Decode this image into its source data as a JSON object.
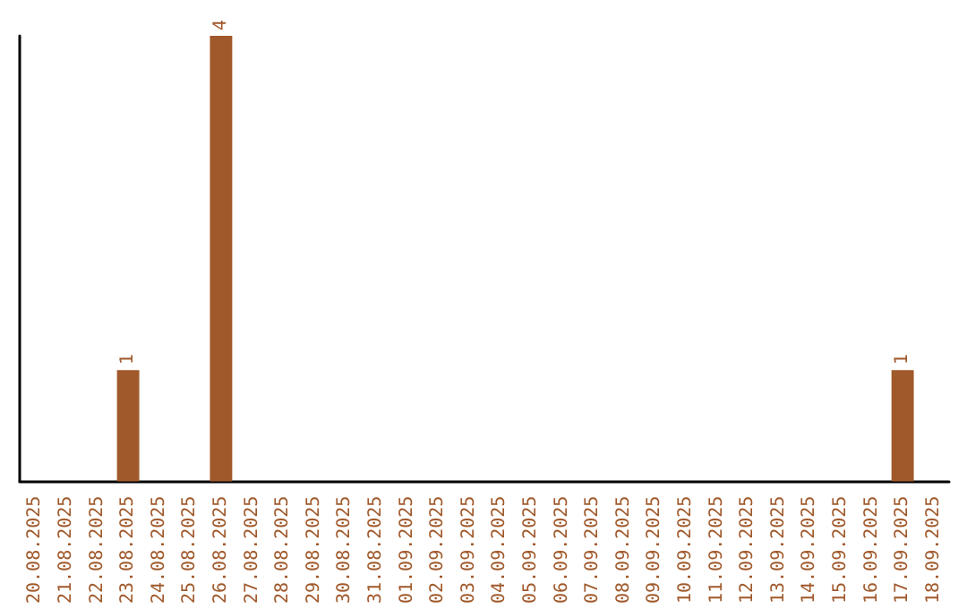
{
  "chart_data": {
    "type": "bar",
    "categories": [
      "20.08.2025",
      "21.08.2025",
      "22.08.2025",
      "23.08.2025",
      "24.08.2025",
      "25.08.2025",
      "26.08.2025",
      "27.08.2025",
      "28.08.2025",
      "29.08.2025",
      "30.08.2025",
      "31.08.2025",
      "01.09.2025",
      "02.09.2025",
      "03.09.2025",
      "04.09.2025",
      "05.09.2025",
      "06.09.2025",
      "07.09.2025",
      "08.09.2025",
      "09.09.2025",
      "10.09.2025",
      "11.09.2025",
      "12.09.2025",
      "13.09.2025",
      "14.09.2025",
      "15.09.2025",
      "16.09.2025",
      "17.09.2025",
      "18.09.2025"
    ],
    "values": [
      0,
      0,
      0,
      1,
      0,
      0,
      4,
      0,
      0,
      0,
      0,
      0,
      0,
      0,
      0,
      0,
      0,
      0,
      0,
      0,
      0,
      0,
      0,
      0,
      0,
      0,
      0,
      0,
      1,
      0
    ],
    "value_labels": [
      null,
      null,
      null,
      "1",
      null,
      null,
      "4",
      null,
      null,
      null,
      null,
      null,
      null,
      null,
      null,
      null,
      null,
      null,
      null,
      null,
      null,
      null,
      null,
      null,
      null,
      null,
      null,
      null,
      "1",
      null
    ],
    "color": "#a0592b",
    "grid": false,
    "tick_labels": "x"
  }
}
